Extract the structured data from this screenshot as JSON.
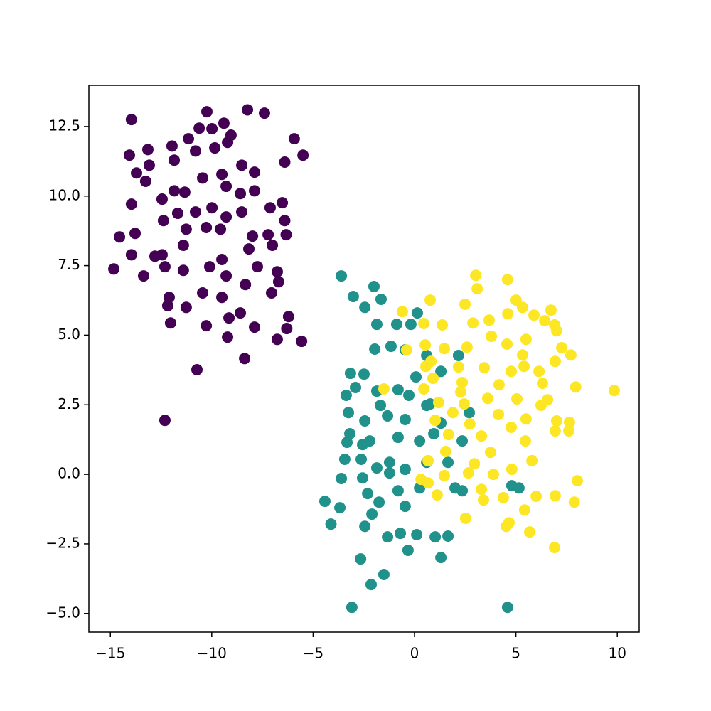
{
  "chart_data": {
    "type": "scatter",
    "xlim": [
      -16.06,
      11.08
    ],
    "ylim": [
      -5.67,
      13.98
    ],
    "xticks": [
      {
        "value": -15,
        "label": "−15"
      },
      {
        "value": -10,
        "label": "−10"
      },
      {
        "value": -5,
        "label": "−5"
      },
      0,
      5,
      10
    ],
    "yticks": [
      {
        "value": -5,
        "label": "−5.0"
      },
      {
        "value": -2.5,
        "label": "−2.5"
      },
      {
        "value": 0,
        "label": "0.0"
      },
      2.5,
      {
        "value": 5,
        "label": "5.0"
      },
      7.5,
      {
        "value": 10,
        "label": "10.0"
      },
      12.5
    ],
    "series": [
      {
        "color": "#440154",
        "x": [
          -13.96,
          -10.24,
          -8.24,
          -7.4,
          -9.4,
          -5.93,
          -5.5,
          -14.06,
          -13.15,
          -11.15,
          -10.62,
          -9.99,
          -9.05,
          -11.96,
          -10.8,
          -9.85,
          -9.22,
          -6.4,
          -13.08,
          -13.71,
          -13.26,
          -11.85,
          -8.52,
          -7.89,
          -9.5,
          -10.45,
          -13.96,
          -12.45,
          -11.85,
          -11.33,
          -9.29,
          -8.59,
          -7.89,
          -6.52,
          -7.12,
          -10.8,
          -9.99,
          -8.52,
          -9.29,
          -12.38,
          -11.68,
          -11.26,
          -6.4,
          -6.33,
          -7.22,
          -14.55,
          -13.78,
          -10.27,
          -9.57,
          -7.99,
          -11.4,
          -8.17,
          -7.01,
          -13.96,
          -12.8,
          -12.45,
          -14.83,
          -13.36,
          -12.31,
          -11.4,
          -10.1,
          -9.29,
          -9.5,
          -7.75,
          -6.77,
          -6.7,
          -12.1,
          -11.26,
          -10.45,
          -9.5,
          -8.34,
          -7.05,
          -12.17,
          -9.15,
          -8.59,
          -6.21,
          -12.03,
          -10.27,
          -7.89,
          -6.3,
          -5.57,
          -9.22,
          -6.77,
          -8.38,
          -10.73,
          -12.31
        ],
        "y": [
          12.75,
          13.03,
          13.1,
          12.98,
          12.62,
          12.06,
          11.47,
          11.47,
          11.67,
          12.06,
          12.44,
          12.42,
          12.19,
          11.8,
          11.62,
          11.73,
          11.93,
          11.22,
          11.11,
          10.83,
          10.53,
          11.29,
          11.11,
          10.86,
          10.78,
          10.65,
          9.71,
          9.89,
          10.19,
          10.14,
          10.35,
          10.09,
          10.19,
          9.76,
          9.58,
          9.43,
          9.58,
          9.43,
          9.25,
          9.12,
          9.38,
          8.81,
          9.12,
          8.61,
          8.61,
          8.53,
          8.66,
          8.87,
          8.81,
          8.56,
          8.23,
          8.1,
          8.23,
          7.89,
          7.84,
          7.89,
          7.38,
          7.13,
          7.46,
          7.33,
          7.46,
          7.13,
          7.72,
          7.46,
          7.28,
          6.92,
          6.36,
          6.0,
          6.52,
          6.36,
          6.82,
          6.52,
          6.06,
          5.62,
          5.8,
          5.67,
          5.44,
          5.34,
          5.29,
          5.24,
          4.78,
          4.93,
          4.85,
          4.16,
          3.76,
          1.94
        ]
      },
      {
        "color": "#21918c",
        "x": [
          -3.61,
          -2.0,
          -3.02,
          -1.65,
          -2.45,
          0.14,
          -1.86,
          -0.88,
          -0.18,
          -1.16,
          -1.96,
          -0.46,
          0.6,
          -3.16,
          -2.49,
          0.07,
          1.3,
          2.17,
          -2.91,
          -3.37,
          -1.86,
          -0.81,
          -0.28,
          0.6,
          -1.68,
          -3.26,
          -2.45,
          -1.33,
          -0.46,
          1.3,
          2.7,
          -3.19,
          -2.56,
          -2.21,
          -3.33,
          -0.81,
          0.25,
          0.95,
          2.35,
          -3.44,
          -2.63,
          -1.86,
          -1.23,
          -0.46,
          0.6,
          1.65,
          -3.61,
          -2.56,
          -1.23,
          -0.81,
          0.25,
          2.0,
          2.35,
          -2.31,
          -1.75,
          -0.46,
          -4.42,
          -3.68,
          -2.1,
          -4.12,
          -2.45,
          -0.7,
          -1.33,
          0.11,
          1.02,
          1.65,
          -0.32,
          -2.66,
          1.3,
          -1.51,
          -2.14,
          -3.09,
          4.59,
          4.8,
          5.15,
          0.77
        ],
        "y": [
          7.13,
          6.75,
          6.39,
          6.29,
          6.0,
          5.8,
          5.39,
          5.39,
          5.39,
          4.6,
          4.5,
          4.47,
          4.27,
          3.63,
          3.6,
          3.5,
          3.7,
          4.27,
          3.12,
          2.84,
          2.99,
          3.04,
          2.84,
          2.48,
          2.48,
          2.22,
          1.92,
          2.1,
          1.97,
          1.84,
          2.22,
          1.46,
          1.07,
          1.2,
          1.15,
          1.33,
          1.2,
          1.46,
          1.2,
          0.54,
          0.54,
          0.23,
          0.43,
          0.18,
          0.43,
          0.43,
          -0.15,
          -0.13,
          0.05,
          -0.59,
          -0.49,
          -0.49,
          -0.59,
          -0.69,
          -1.0,
          -1.15,
          -0.97,
          -1.2,
          -1.43,
          -1.79,
          -1.87,
          -2.12,
          -2.25,
          -2.17,
          -2.25,
          -2.22,
          -2.73,
          -3.04,
          -2.99,
          -3.6,
          -3.96,
          -4.78,
          -4.78,
          -0.41,
          -0.49,
          2.53
        ]
      },
      {
        "color": "#fde725",
        "x": [
          3.02,
          4.59,
          3.09,
          0.77,
          -0.6,
          2.49,
          5.01,
          5.33,
          6.73,
          3.68,
          4.6,
          5.89,
          6.42,
          6.91,
          7.01,
          0.46,
          1.37,
          2.88,
          3.79,
          5.5,
          -0.39,
          0.53,
          1.47,
          2.59,
          4.56,
          7.26,
          7.71,
          6.94,
          5.33,
          0.81,
          2.17,
          3.44,
          4.77,
          6.14,
          5.4,
          0.56,
          0.91,
          2.35,
          4.17,
          6.31,
          -1.51,
          0.46,
          7.95,
          9.85,
          2.28,
          3.61,
          6.56,
          1.19,
          2.45,
          5.05,
          6.24,
          1.89,
          4.14,
          5.5,
          7.01,
          7.64,
          1.02,
          2.73,
          6.94,
          7.61,
          4.77,
          1.68,
          3.3,
          5.47,
          3.75,
          1.54,
          0.67,
          2.95,
          5.79,
          4.8,
          2.66,
          3.89,
          1.47,
          0.32,
          0.67,
          8.03,
          3.3,
          1.12,
          6.0,
          6.94,
          3.4,
          7.88,
          4.38,
          5.43,
          2.52,
          4.66,
          4.52,
          5.68,
          6.91
        ],
        "y": [
          7.15,
          7.0,
          6.67,
          6.26,
          5.85,
          6.11,
          6.26,
          6.0,
          5.9,
          5.54,
          5.77,
          5.72,
          5.52,
          5.37,
          5.16,
          5.42,
          5.37,
          5.44,
          4.96,
          4.85,
          4.47,
          4.65,
          4.52,
          4.57,
          4.68,
          4.55,
          4.29,
          4.06,
          4.29,
          4.06,
          3.86,
          3.83,
          3.7,
          3.7,
          3.88,
          3.88,
          3.45,
          3.3,
          3.22,
          3.27,
          3.07,
          3.07,
          3.14,
          3.01,
          2.96,
          2.73,
          2.68,
          2.58,
          2.53,
          2.71,
          2.48,
          2.22,
          2.15,
          1.99,
          1.92,
          1.87,
          1.94,
          1.81,
          1.56,
          1.56,
          1.69,
          1.43,
          1.38,
          1.2,
          0.79,
          0.82,
          0.49,
          0.38,
          0.49,
          0.18,
          0.05,
          0.0,
          -0.05,
          -0.18,
          -0.31,
          -0.23,
          -0.54,
          -0.74,
          -0.79,
          -0.77,
          -0.92,
          -1.0,
          -0.84,
          -1.28,
          -1.58,
          -1.74,
          -1.87,
          -2.07,
          -2.63
        ]
      }
    ]
  }
}
